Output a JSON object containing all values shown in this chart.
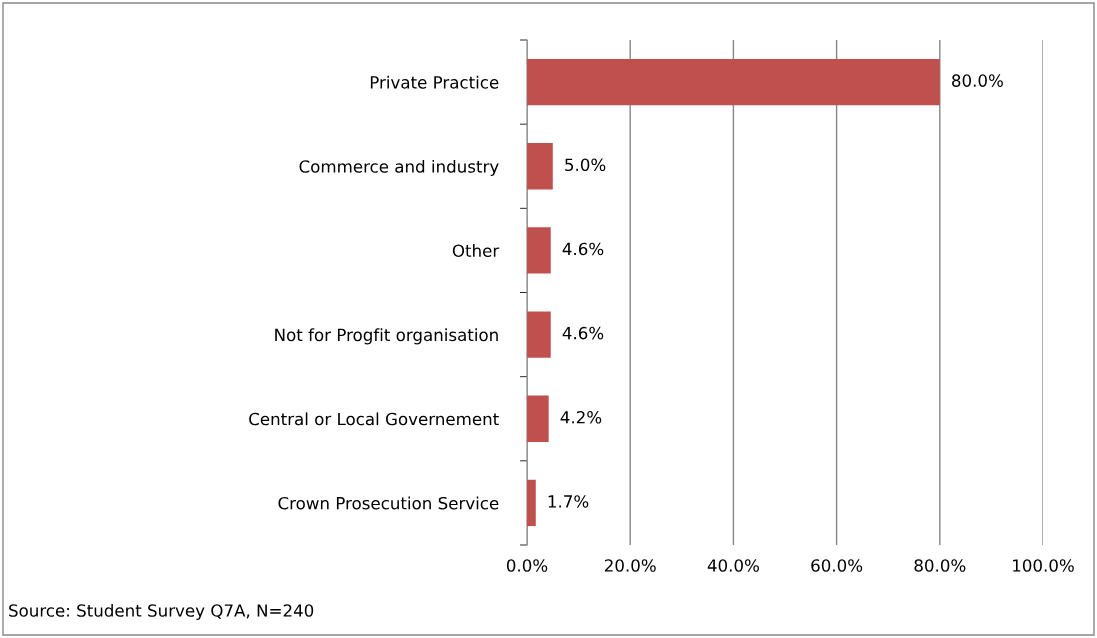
{
  "chart_data": {
    "type": "bar",
    "orientation": "horizontal",
    "categories": [
      "Private Practice",
      "Commerce and industry",
      "Other",
      "Not for Progfit organisation",
      "Central or Local Governement",
      "Crown Prosecution Service"
    ],
    "values": [
      80.0,
      5.0,
      4.6,
      4.6,
      4.2,
      1.7
    ],
    "value_labels": [
      "80.0%",
      "5.0%",
      "4.6%",
      "4.6%",
      "4.2%",
      "1.7%"
    ],
    "color": "#c0504d",
    "xlim": [
      0,
      100
    ],
    "xticks": [
      {
        "value": 0,
        "label": "0.0%"
      },
      {
        "value": 20,
        "label": "20.0%"
      },
      {
        "value": 40,
        "label": "40.0%"
      },
      {
        "value": 60,
        "label": "60.0%"
      },
      {
        "value": 80,
        "label": "80.0%"
      },
      {
        "value": 100,
        "label": "100.0%"
      }
    ],
    "grid": "x",
    "annotations": [
      "Source: Student Survey Q7A, N=240"
    ]
  }
}
